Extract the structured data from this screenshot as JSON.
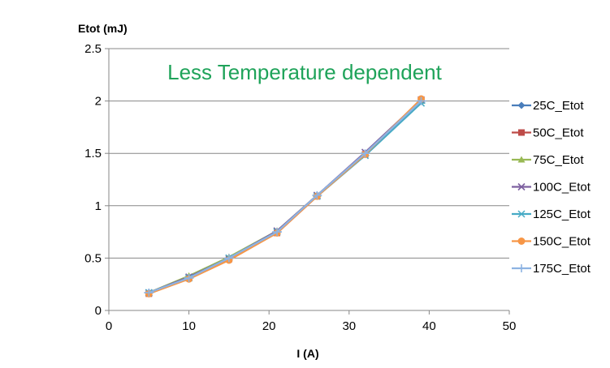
{
  "chart_data": {
    "type": "line",
    "title": "",
    "annotation": "Less Temperature dependent",
    "ylabel": "Etot (mJ)",
    "xlabel": "I (A)",
    "xlim": [
      0,
      50
    ],
    "ylim": [
      0,
      2.5
    ],
    "xticks": [
      "0",
      "10",
      "20",
      "30",
      "40",
      "50"
    ],
    "yticks": [
      "0",
      "0.5",
      "1",
      "1.5",
      "2",
      "2.5"
    ],
    "grid": "horizontal",
    "legend_position": "right",
    "x": [
      5,
      10,
      15,
      21,
      26,
      32,
      39
    ],
    "series": [
      {
        "name": "25C_Etot",
        "color": "#4A7EBB",
        "marker": "diamond",
        "values": [
          0.17,
          0.31,
          0.49,
          0.75,
          1.1,
          1.5,
          2.0
        ]
      },
      {
        "name": "50C_Etot",
        "color": "#BE4B48",
        "marker": "square",
        "values": [
          0.16,
          0.31,
          0.49,
          0.74,
          1.09,
          1.49,
          2.01
        ]
      },
      {
        "name": "75C_Etot",
        "color": "#98B954",
        "marker": "triangle",
        "values": [
          0.17,
          0.33,
          0.51,
          0.76,
          1.1,
          1.5,
          2.0
        ]
      },
      {
        "name": "100C_Etot",
        "color": "#7D60A0",
        "marker": "x",
        "values": [
          0.17,
          0.32,
          0.5,
          0.76,
          1.1,
          1.51,
          2.01
        ]
      },
      {
        "name": "125C_Etot",
        "color": "#46AAC5",
        "marker": "asterisk",
        "values": [
          0.17,
          0.31,
          0.5,
          0.75,
          1.09,
          1.48,
          1.98
        ]
      },
      {
        "name": "150C_Etot",
        "color": "#F79646",
        "marker": "circle",
        "values": [
          0.16,
          0.3,
          0.48,
          0.74,
          1.09,
          1.49,
          2.02
        ]
      },
      {
        "name": "175C_Etot",
        "color": "#8DB3E2",
        "marker": "plus",
        "values": [
          0.17,
          0.31,
          0.5,
          0.75,
          1.1,
          1.5,
          2.0
        ]
      }
    ],
    "annotation_color": "#1FA35A"
  }
}
